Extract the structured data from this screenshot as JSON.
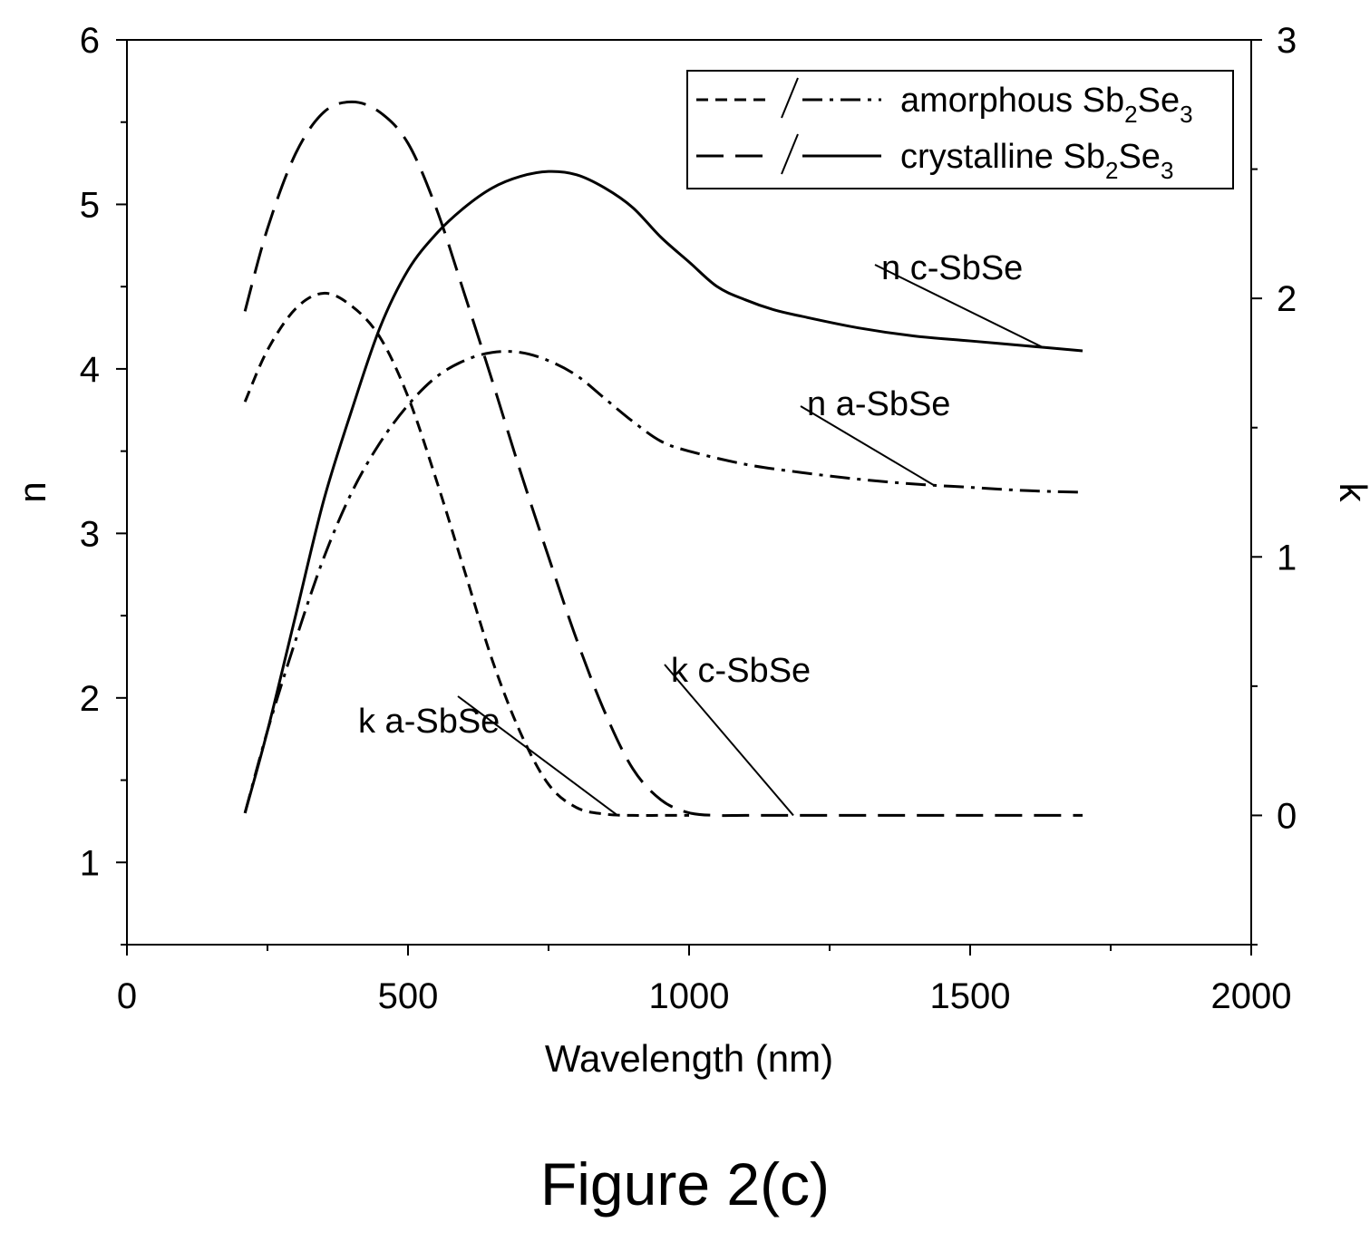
{
  "chart_data": {
    "type": "line",
    "xlabel": "Wavelength (nm)",
    "ylabel": "n",
    "y2label": "k",
    "xlim": [
      0,
      2000
    ],
    "ylim": [
      0.5,
      6
    ],
    "y2lim": [
      -0.5,
      3
    ],
    "xticks": [
      0,
      500,
      1000,
      1500,
      2000
    ],
    "yticks": [
      1,
      2,
      3,
      4,
      5,
      6
    ],
    "y2ticks": [
      0,
      1,
      2,
      3
    ],
    "grid": false,
    "legend": {
      "position": "top-right",
      "entries": [
        {
          "text": "amorphous Sb",
          "sub1": "2",
          "mid": "Se",
          "sub2": "3"
        },
        {
          "text": "crystalline Sb",
          "sub1": "2",
          "mid": "Se",
          "sub2": "3"
        }
      ]
    },
    "series": [
      {
        "name": "n c-SbSe",
        "axis": "left",
        "style": "solid",
        "x": [
          210,
          250,
          300,
          350,
          400,
          450,
          500,
          550,
          600,
          650,
          700,
          750,
          800,
          850,
          900,
          950,
          1000,
          1050,
          1100,
          1150,
          1200,
          1300,
          1400,
          1500,
          1600,
          1700
        ],
        "y": [
          1.3,
          1.8,
          2.5,
          3.2,
          3.75,
          4.25,
          4.6,
          4.82,
          4.98,
          5.1,
          5.17,
          5.2,
          5.18,
          5.1,
          4.98,
          4.8,
          4.65,
          4.5,
          4.42,
          4.36,
          4.32,
          4.25,
          4.2,
          4.17,
          4.14,
          4.11
        ]
      },
      {
        "name": "n a-SbSe",
        "axis": "left",
        "style": "dashdot",
        "x": [
          210,
          250,
          300,
          350,
          400,
          450,
          500,
          550,
          600,
          650,
          700,
          750,
          800,
          850,
          900,
          950,
          1000,
          1100,
          1200,
          1300,
          1400,
          1500,
          1600,
          1700
        ],
        "y": [
          1.3,
          1.8,
          2.35,
          2.85,
          3.25,
          3.55,
          3.78,
          3.95,
          4.05,
          4.1,
          4.1,
          4.05,
          3.96,
          3.82,
          3.68,
          3.56,
          3.5,
          3.42,
          3.37,
          3.33,
          3.3,
          3.28,
          3.26,
          3.25
        ]
      },
      {
        "name": "k c-SbSe",
        "axis": "right",
        "style": "longdash",
        "x": [
          210,
          250,
          300,
          350,
          400,
          450,
          500,
          550,
          600,
          650,
          700,
          750,
          800,
          850,
          900,
          950,
          1000,
          1050,
          1100,
          1200,
          1400,
          1700
        ],
        "y": [
          1.95,
          2.27,
          2.56,
          2.72,
          2.76,
          2.72,
          2.6,
          2.35,
          2.02,
          1.68,
          1.33,
          1.0,
          0.68,
          0.4,
          0.18,
          0.06,
          0.01,
          0,
          0,
          0,
          0,
          0
        ]
      },
      {
        "name": "k a-SbSe",
        "axis": "right",
        "style": "shortdash",
        "x": [
          210,
          250,
          300,
          350,
          400,
          450,
          500,
          550,
          600,
          650,
          700,
          750,
          800,
          850,
          900,
          950,
          1000
        ],
        "y": [
          1.6,
          1.8,
          1.96,
          2.02,
          1.97,
          1.85,
          1.62,
          1.3,
          0.95,
          0.6,
          0.32,
          0.12,
          0.03,
          0.005,
          0,
          0,
          0
        ]
      }
    ],
    "annotations": [
      {
        "text": "n c-SbSe",
        "series": "n c-SbSe"
      },
      {
        "text": "n a-SbSe",
        "series": "n a-SbSe"
      },
      {
        "text": "k c-SbSe",
        "series": "k c-SbSe"
      },
      {
        "text": "k a-SbSe",
        "series": "k a-SbSe"
      }
    ]
  },
  "caption": "Figure 2(c)"
}
